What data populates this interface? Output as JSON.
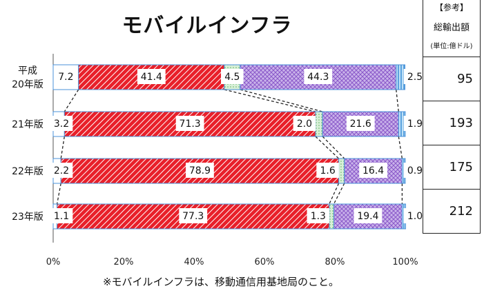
{
  "chart_data": {
    "type": "bar",
    "orientation": "horizontal",
    "stacked": true,
    "percent": true,
    "title": "モバイルインフラ",
    "categories": [
      "平成20年版",
      "21年版",
      "22年版",
      "23年版"
    ],
    "category_labels": [
      [
        "平成",
        "20年版"
      ],
      [
        "21年版"
      ],
      [
        "22年版"
      ],
      [
        "23年版"
      ]
    ],
    "series": [
      {
        "values": [
          7.2,
          3.2,
          2.2,
          1.1
        ],
        "color": "#ffffff",
        "pattern": "plain"
      },
      {
        "values": [
          41.4,
          71.3,
          78.9,
          77.3
        ],
        "color": "#e8202a",
        "pattern": "diagonal-stripes"
      },
      {
        "values": [
          4.5,
          2.0,
          1.6,
          1.3
        ],
        "color": "#c8e6c8",
        "pattern": "light-green"
      },
      {
        "values": [
          44.3,
          21.6,
          16.4,
          19.4
        ],
        "color": "#9b6bd1",
        "pattern": "crosshatch"
      },
      {
        "values": [
          2.5,
          1.9,
          0.9,
          1.0
        ],
        "color": "#5aa9e6",
        "pattern": "vertical-stripes"
      }
    ],
    "x_ticks": [
      "0%",
      "20%",
      "40%",
      "60%",
      "80%",
      "100%"
    ],
    "xlim": [
      0,
      100
    ],
    "connector_lines": "dashed",
    "bar_outline_color": "#4a90d9"
  },
  "side_table": {
    "header_line1": "【参考】",
    "header_line2": "総輸出額",
    "header_line3": "(単位:億ドル)",
    "values": [
      "95",
      "193",
      "175",
      "212"
    ]
  },
  "footnote": "※モバイルインフラは、移動通信用基地局のこと。"
}
